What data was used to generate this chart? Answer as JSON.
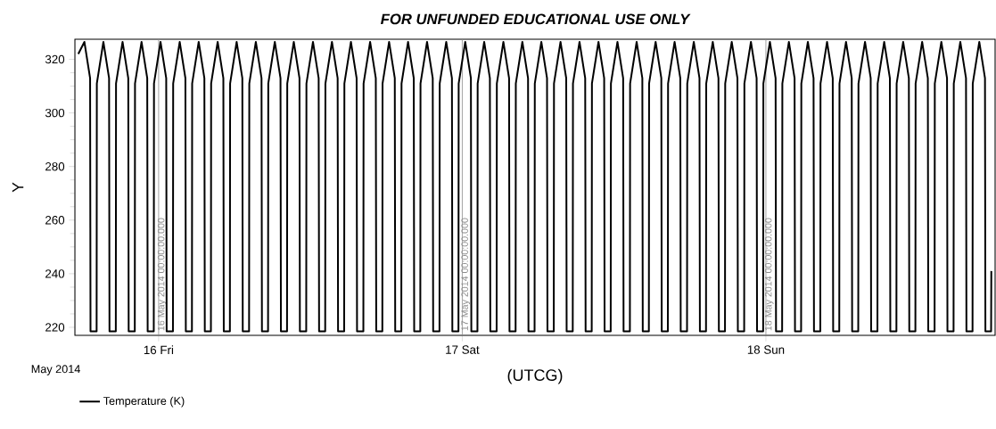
{
  "chart_data": {
    "type": "line",
    "title": "FOR UNFUNDED EDUCATIONAL USE ONLY",
    "xlabel": "(UTCG)",
    "ylabel": "Y",
    "annotations": [
      "May 2014"
    ],
    "legend": "bottom left",
    "marker": "none",
    "line_style": "solid",
    "xlim": [
      "2014-05-15T17:23",
      "2014-05-18T18:07"
    ],
    "ylim": [
      217,
      327.5
    ],
    "xticks": [
      {
        "value": "2014-05-16",
        "label": "16 Fri"
      },
      {
        "value": "2014-05-17",
        "label": "17 Sat"
      },
      {
        "value": "2014-05-18",
        "label": "18 Sun"
      }
    ],
    "yticks": [
      220,
      {
        "value": 225,
        "label": null
      },
      {
        "value": 230,
        "label": null
      },
      {
        "value": 235,
        "label": null
      },
      240,
      {
        "value": 245,
        "label": null
      },
      {
        "value": 250,
        "label": null
      },
      {
        "value": 255,
        "label": null
      },
      260,
      {
        "value": 265,
        "label": null
      },
      {
        "value": 270,
        "label": null
      },
      {
        "value": 275,
        "label": null
      },
      280,
      {
        "value": 285,
        "label": null
      },
      {
        "value": 290,
        "label": null
      },
      {
        "value": 295,
        "label": null
      },
      300,
      {
        "value": 305,
        "label": null
      },
      {
        "value": 310,
        "label": null
      },
      {
        "value": 315,
        "label": null
      },
      320
    ],
    "ref_lines": [
      {
        "axis": "x",
        "value": "2014-05-16T00:00",
        "label": "16 May 2014 00:00:00.000",
        "color": "#8c8c8c"
      },
      {
        "axis": "x",
        "value": "2014-05-17T00:00",
        "label": "17 May 2014 00:00:00.000",
        "color": "#8c8c8c"
      },
      {
        "axis": "x",
        "value": "2014-05-18T00:00",
        "label": "18 May 2014 00:00:00.000",
        "color": "#8c8c8c"
      }
    ],
    "x": [
      "2014-05-15T17:39",
      "2014-05-15T18:08",
      "2014-05-15T18:35",
      "2014-05-15T18:37",
      "2014-05-15T19:06",
      "2014-05-15T19:07",
      "2014-05-15T19:38",
      "2014-05-15T20:05",
      "2014-05-15T20:07",
      "2014-05-15T20:37",
      "2014-05-15T20:38",
      "2014-05-15T21:09",
      "2014-05-15T21:36",
      "2014-05-15T21:38",
      "2014-05-15T22:07",
      "2014-05-15T22:08",
      "2014-05-15T22:39",
      "2014-05-15T23:06",
      "2014-05-15T23:08",
      "2014-05-15T23:37",
      "2014-05-15T23:38",
      "2014-05-16T00:09",
      "2014-05-16T00:36",
      "2014-05-16T00:38",
      "2014-05-16T01:08",
      "2014-05-16T01:09",
      "2014-05-16T01:40",
      "2014-05-16T02:07",
      "2014-05-16T02:09",
      "2014-05-16T02:38",
      "2014-05-16T02:39",
      "2014-05-16T03:10",
      "2014-05-16T03:37",
      "2014-05-16T03:39",
      "2014-05-16T04:08",
      "2014-05-16T04:09",
      "2014-05-16T04:40",
      "2014-05-16T05:07",
      "2014-05-16T05:09",
      "2014-05-16T05:38",
      "2014-05-16T05:39",
      "2014-05-16T06:10",
      "2014-05-16T06:37",
      "2014-05-16T06:39",
      "2014-05-16T07:09",
      "2014-05-16T07:10",
      "2014-05-16T07:41",
      "2014-05-16T08:08",
      "2014-05-16T08:10",
      "2014-05-16T08:39",
      "2014-05-16T08:40",
      "2014-05-16T09:11",
      "2014-05-16T09:38",
      "2014-05-16T09:40",
      "2014-05-16T10:09",
      "2014-05-16T10:10",
      "2014-05-16T10:41",
      "2014-05-16T11:08",
      "2014-05-16T11:10",
      "2014-05-16T11:40",
      "2014-05-16T11:41",
      "2014-05-16T12:12",
      "2014-05-16T12:39",
      "2014-05-16T12:41",
      "2014-05-16T13:10",
      "2014-05-16T13:11",
      "2014-05-16T13:42",
      "2014-05-16T14:09",
      "2014-05-16T14:11",
      "2014-05-16T14:40",
      "2014-05-16T14:41",
      "2014-05-16T15:12",
      "2014-05-16T15:39",
      "2014-05-16T15:41",
      "2014-05-16T16:11",
      "2014-05-16T16:12",
      "2014-05-16T16:43",
      "2014-05-16T17:10",
      "2014-05-16T17:12",
      "2014-05-16T17:41",
      "2014-05-16T17:42",
      "2014-05-16T18:13",
      "2014-05-16T18:40",
      "2014-05-16T18:42",
      "2014-05-16T19:11",
      "2014-05-16T19:12",
      "2014-05-16T19:43",
      "2014-05-16T20:10",
      "2014-05-16T20:12",
      "2014-05-16T20:41",
      "2014-05-16T20:42",
      "2014-05-16T21:13",
      "2014-05-16T21:40",
      "2014-05-16T21:42",
      "2014-05-16T22:12",
      "2014-05-16T22:13",
      "2014-05-16T22:44",
      "2014-05-16T23:11",
      "2014-05-16T23:13",
      "2014-05-16T23:42",
      "2014-05-16T23:43",
      "2014-05-17T00:14",
      "2014-05-17T00:41",
      "2014-05-17T00:43",
      "2014-05-17T01:12",
      "2014-05-17T01:13",
      "2014-05-17T01:44",
      "2014-05-17T02:11",
      "2014-05-17T02:13",
      "2014-05-17T02:43",
      "2014-05-17T02:44",
      "2014-05-17T03:15",
      "2014-05-17T03:42",
      "2014-05-17T03:44",
      "2014-05-17T04:13",
      "2014-05-17T04:14",
      "2014-05-17T04:45",
      "2014-05-17T05:12",
      "2014-05-17T05:14",
      "2014-05-17T05:43",
      "2014-05-17T05:44",
      "2014-05-17T06:15",
      "2014-05-17T06:42",
      "2014-05-17T06:44",
      "2014-05-17T07:14",
      "2014-05-17T07:15",
      "2014-05-17T07:46",
      "2014-05-17T08:13",
      "2014-05-17T08:15",
      "2014-05-17T08:44",
      "2014-05-17T08:45",
      "2014-05-17T09:16",
      "2014-05-17T09:43",
      "2014-05-17T09:45",
      "2014-05-17T10:14",
      "2014-05-17T10:15",
      "2014-05-17T10:46",
      "2014-05-17T11:13",
      "2014-05-17T11:15",
      "2014-05-17T11:44",
      "2014-05-17T11:45",
      "2014-05-17T12:16",
      "2014-05-17T12:43",
      "2014-05-17T12:45",
      "2014-05-17T13:15",
      "2014-05-17T13:16",
      "2014-05-17T13:47",
      "2014-05-17T14:14",
      "2014-05-17T14:16",
      "2014-05-17T14:45",
      "2014-05-17T14:46",
      "2014-05-17T15:17",
      "2014-05-17T15:44",
      "2014-05-17T15:46",
      "2014-05-17T16:15",
      "2014-05-17T16:16",
      "2014-05-17T16:47",
      "2014-05-17T17:14",
      "2014-05-17T17:16",
      "2014-05-17T17:46",
      "2014-05-17T17:47",
      "2014-05-17T18:18",
      "2014-05-17T18:45",
      "2014-05-17T18:47",
      "2014-05-17T19:16",
      "2014-05-17T19:17",
      "2014-05-17T19:48",
      "2014-05-17T20:15",
      "2014-05-17T20:17",
      "2014-05-17T20:46",
      "2014-05-17T20:47",
      "2014-05-17T21:18",
      "2014-05-17T21:45",
      "2014-05-17T21:47",
      "2014-05-17T22:17",
      "2014-05-17T22:18",
      "2014-05-17T22:49",
      "2014-05-17T23:16",
      "2014-05-17T23:18",
      "2014-05-17T23:47",
      "2014-05-17T23:48",
      "2014-05-18T00:19",
      "2014-05-18T00:46",
      "2014-05-18T00:48",
      "2014-05-18T01:17",
      "2014-05-18T01:18",
      "2014-05-18T01:49",
      "2014-05-18T02:16",
      "2014-05-18T02:18",
      "2014-05-18T02:47",
      "2014-05-18T02:48",
      "2014-05-18T03:19",
      "2014-05-18T03:46",
      "2014-05-18T03:48",
      "2014-05-18T04:18",
      "2014-05-18T04:19",
      "2014-05-18T04:50",
      "2014-05-18T05:17",
      "2014-05-18T05:19",
      "2014-05-18T05:48",
      "2014-05-18T05:49",
      "2014-05-18T06:20",
      "2014-05-18T06:47",
      "2014-05-18T06:49",
      "2014-05-18T07:18",
      "2014-05-18T07:19",
      "2014-05-18T07:50",
      "2014-05-18T08:17",
      "2014-05-18T08:19",
      "2014-05-18T08:49",
      "2014-05-18T08:50",
      "2014-05-18T09:21",
      "2014-05-18T09:48",
      "2014-05-18T09:50",
      "2014-05-18T10:19",
      "2014-05-18T10:20",
      "2014-05-18T10:51",
      "2014-05-18T11:18",
      "2014-05-18T11:20",
      "2014-05-18T11:49",
      "2014-05-18T11:50",
      "2014-05-18T12:21",
      "2014-05-18T12:48",
      "2014-05-18T12:50",
      "2014-05-18T13:20",
      "2014-05-18T13:21",
      "2014-05-18T13:52",
      "2014-05-18T14:19",
      "2014-05-18T14:21",
      "2014-05-18T14:50",
      "2014-05-18T14:51",
      "2014-05-18T15:22",
      "2014-05-18T15:49",
      "2014-05-18T15:51",
      "2014-05-18T16:20",
      "2014-05-18T16:21",
      "2014-05-18T16:52",
      "2014-05-18T17:19",
      "2014-05-18T17:21",
      "2014-05-18T17:48",
      "2014-05-18T17:49"
    ],
    "series": [
      {
        "name": "Temperature (K)",
        "color": "#000000",
        "values": [
          322,
          326.5,
          313,
          218.5,
          218.5,
          311,
          326.5,
          313,
          218.5,
          218.5,
          311,
          326.5,
          313,
          218.5,
          218.5,
          311,
          326.5,
          313,
          218.5,
          218.5,
          311,
          326.5,
          313,
          218.5,
          218.5,
          311,
          326.5,
          313,
          218.5,
          218.5,
          311,
          326.5,
          313,
          218.5,
          218.5,
          311,
          326.5,
          313,
          218.5,
          218.5,
          311,
          326.5,
          313,
          218.5,
          218.5,
          311,
          326.5,
          313,
          218.5,
          218.5,
          311,
          326.5,
          313,
          218.5,
          218.5,
          311,
          326.5,
          313,
          218.5,
          218.5,
          311,
          326.5,
          313,
          218.5,
          218.5,
          311,
          326.5,
          313,
          218.5,
          218.5,
          311,
          326.5,
          313,
          218.5,
          218.5,
          311,
          326.5,
          313,
          218.5,
          218.5,
          311,
          326.5,
          313,
          218.5,
          218.5,
          311,
          326.5,
          313,
          218.5,
          218.5,
          311,
          326.5,
          313,
          218.5,
          218.5,
          311,
          326.5,
          313,
          218.5,
          218.5,
          311,
          326.5,
          313,
          218.5,
          218.5,
          311,
          326.5,
          313,
          218.5,
          218.5,
          311,
          326.5,
          313,
          218.5,
          218.5,
          311,
          326.5,
          313,
          218.5,
          218.5,
          311,
          326.5,
          313,
          218.5,
          218.5,
          311,
          326.5,
          313,
          218.5,
          218.5,
          311,
          326.5,
          313,
          218.5,
          218.5,
          311,
          326.5,
          313,
          218.5,
          218.5,
          311,
          326.5,
          313,
          218.5,
          218.5,
          311,
          326.5,
          313,
          218.5,
          218.5,
          311,
          326.5,
          313,
          218.5,
          218.5,
          311,
          326.5,
          313,
          218.5,
          218.5,
          311,
          326.5,
          313,
          218.5,
          218.5,
          311,
          326.5,
          313,
          218.5,
          218.5,
          311,
          326.5,
          313,
          218.5,
          218.5,
          311,
          326.5,
          313,
          218.5,
          218.5,
          311,
          326.5,
          313,
          218.5,
          218.5,
          311,
          326.5,
          313,
          218.5,
          218.5,
          311,
          326.5,
          313,
          218.5,
          218.5,
          311,
          326.5,
          313,
          218.5,
          218.5,
          311,
          326.5,
          313,
          218.5,
          218.5,
          311,
          326.5,
          313,
          218.5,
          218.5,
          311,
          326.5,
          313,
          218.5,
          218.5,
          311,
          326.5,
          313,
          218.5,
          218.5,
          311,
          326.5,
          313,
          218.5,
          218.5,
          311,
          326.5,
          313,
          218.5,
          218.5,
          311,
          326.5,
          313,
          218.5,
          218.5,
          311,
          326.5,
          313,
          218.5,
          218.5,
          241
        ]
      }
    ]
  }
}
